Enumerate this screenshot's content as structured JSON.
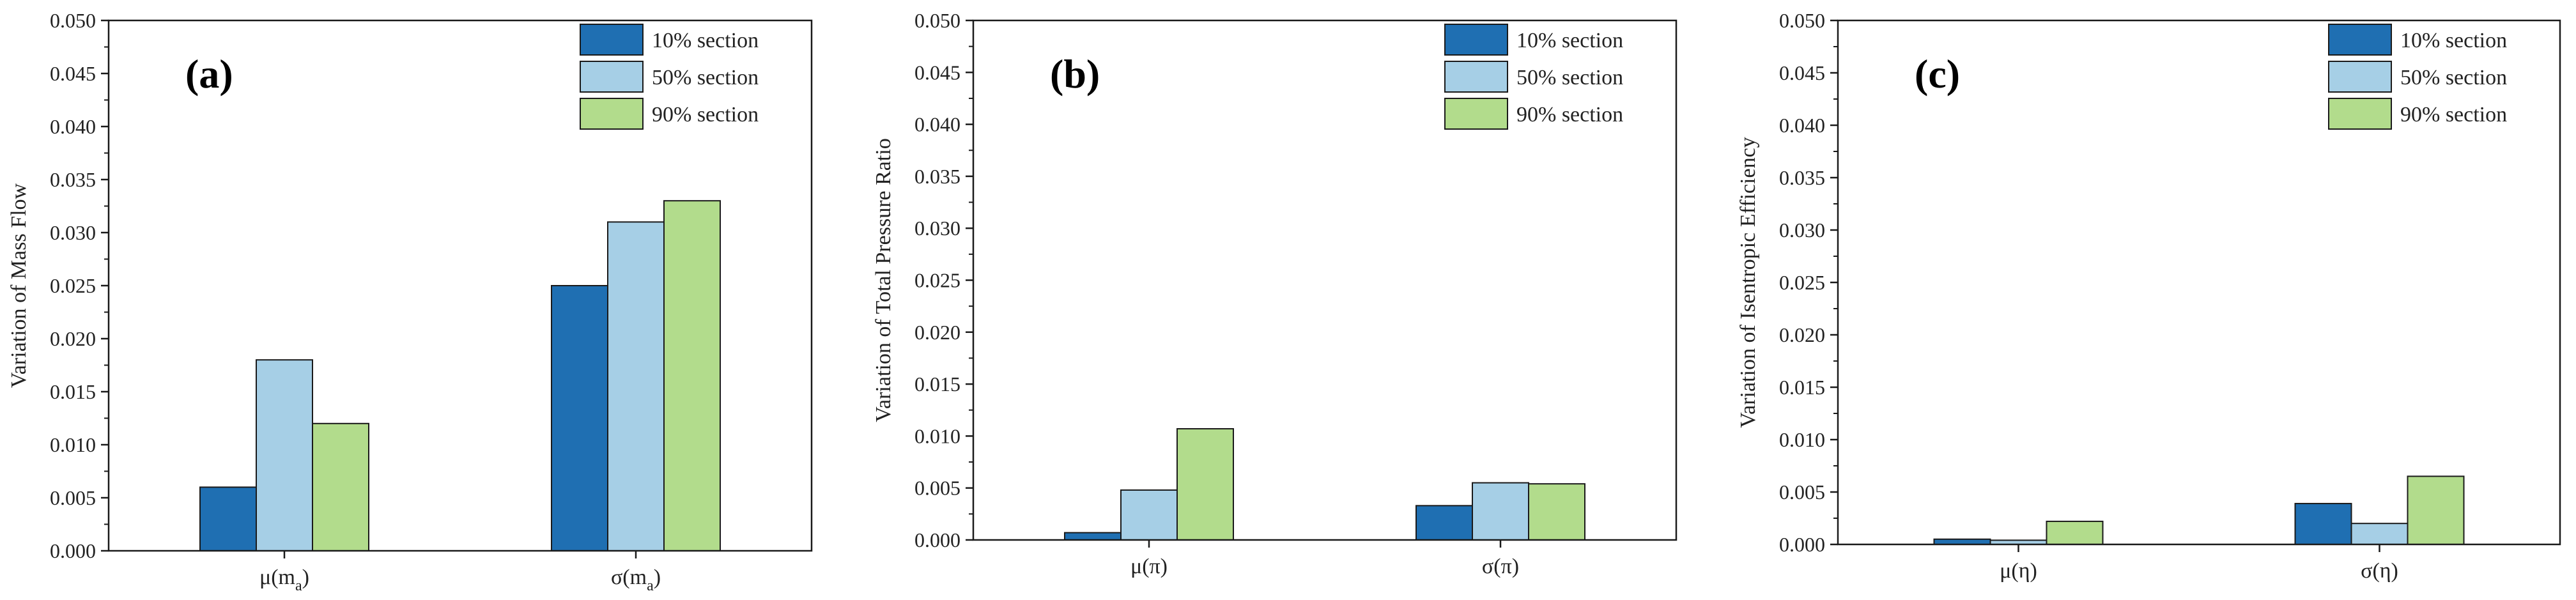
{
  "chart_data": [
    {
      "type": "bar",
      "panel_label": "(a)",
      "ylabel": "Variation of Mass Flow",
      "categories": [
        "μ(m_a)",
        "σ(m_a)"
      ],
      "category_labels": [
        {
          "main": "μ(m",
          "sub": "a",
          "tail": ")"
        },
        {
          "main": "σ(m",
          "sub": "a",
          "tail": ")"
        }
      ],
      "ylim": [
        0,
        0.05
      ],
      "yticks": [
        "0.000",
        "0.005",
        "0.010",
        "0.015",
        "0.020",
        "0.025",
        "0.030",
        "0.035",
        "0.040",
        "0.045",
        "0.050"
      ],
      "legend_position": "top-right",
      "grid": false,
      "series": [
        {
          "name": "10% section",
          "color": "#1f6fb2",
          "values": [
            0.006,
            0.025
          ]
        },
        {
          "name": "50% section",
          "color": "#a6cfe6",
          "values": [
            0.018,
            0.031
          ]
        },
        {
          "name": "90% section",
          "color": "#b2dc8c",
          "values": [
            0.012,
            0.033
          ]
        }
      ]
    },
    {
      "type": "bar",
      "panel_label": "(b)",
      "ylabel": "Variation of Total Pressure Ratio",
      "categories": [
        "μ(π)",
        "σ(π)"
      ],
      "category_labels": [
        {
          "main": "μ(π)",
          "sub": "",
          "tail": ""
        },
        {
          "main": "σ(π)",
          "sub": "",
          "tail": ""
        }
      ],
      "ylim": [
        0,
        0.05
      ],
      "yticks": [
        "0.000",
        "0.005",
        "0.010",
        "0.015",
        "0.020",
        "0.025",
        "0.030",
        "0.035",
        "0.040",
        "0.045",
        "0.050"
      ],
      "legend_position": "top-right",
      "grid": false,
      "series": [
        {
          "name": "10% section",
          "color": "#1f6fb2",
          "values": [
            0.0007,
            0.0033
          ]
        },
        {
          "name": "50% section",
          "color": "#a6cfe6",
          "values": [
            0.0048,
            0.0055
          ]
        },
        {
          "name": "90% section",
          "color": "#b2dc8c",
          "values": [
            0.0107,
            0.0054
          ]
        }
      ]
    },
    {
      "type": "bar",
      "panel_label": "(c)",
      "ylabel": "Variation of Isentropic Efficiency",
      "categories": [
        "μ(η)",
        "σ(η)"
      ],
      "category_labels": [
        {
          "main": "μ(η)",
          "sub": "",
          "tail": ""
        },
        {
          "main": "σ(η)",
          "sub": "",
          "tail": ""
        }
      ],
      "ylim": [
        0,
        0.05
      ],
      "yticks": [
        "0.000",
        "0.005",
        "0.010",
        "0.015",
        "0.020",
        "0.025",
        "0.030",
        "0.035",
        "0.040",
        "0.045",
        "0.050"
      ],
      "legend_position": "top-right",
      "grid": false,
      "series": [
        {
          "name": "10% section",
          "color": "#1f6fb2",
          "values": [
            0.0005,
            0.0039
          ]
        },
        {
          "name": "50% section",
          "color": "#a6cfe6",
          "values": [
            0.0004,
            0.002
          ]
        },
        {
          "name": "90% section",
          "color": "#b2dc8c",
          "values": [
            0.0022,
            0.0065
          ]
        }
      ]
    }
  ]
}
